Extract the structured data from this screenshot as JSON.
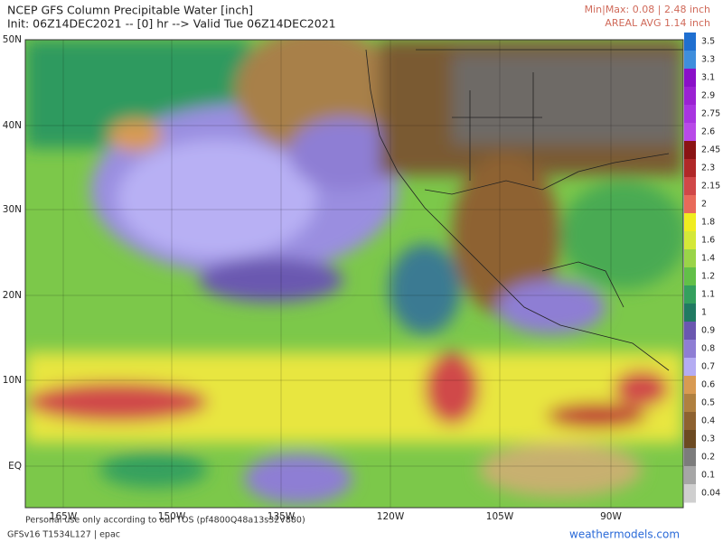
{
  "header": {
    "title": "NCEP GFS Column Precipitable Water [inch]",
    "subtitle": "Init: 06Z14DEC2021 -- [0] hr --> Valid Tue 06Z14DEC2021",
    "minmax": "Min|Max: 0.08 | 2.48 inch",
    "areal_avg": "AREAL AVG 1.14 inch"
  },
  "map": {
    "lat_labels": [
      "50N",
      "40N",
      "30N",
      "20N",
      "10N",
      "EQ"
    ],
    "lon_labels": [
      "165W",
      "150W",
      "135W",
      "120W",
      "105W",
      "90W"
    ]
  },
  "legend": {
    "levels": [
      {
        "label": "3.5",
        "color": "#1f6fd0"
      },
      {
        "label": "3.3",
        "color": "#3f8edc"
      },
      {
        "label": "3.1",
        "color": "#8a10c8"
      },
      {
        "label": "2.9",
        "color": "#9a22d2"
      },
      {
        "label": "2.75",
        "color": "#a835e0"
      },
      {
        "label": "2.6",
        "color": "#b84ae8"
      },
      {
        "label": "2.45",
        "color": "#8a1414"
      },
      {
        "label": "2.3",
        "color": "#b02828"
      },
      {
        "label": "2.15",
        "color": "#d04848"
      },
      {
        "label": "2",
        "color": "#e86a5a"
      },
      {
        "label": "1.8",
        "color": "#f0ec20"
      },
      {
        "label": "1.6",
        "color": "#d4e838"
      },
      {
        "label": "1.4",
        "color": "#9ad448"
      },
      {
        "label": "1.2",
        "color": "#62c048"
      },
      {
        "label": "1.1",
        "color": "#34a05e"
      },
      {
        "label": "1",
        "color": "#207a62"
      },
      {
        "label": "0.9",
        "color": "#6a58b0"
      },
      {
        "label": "0.8",
        "color": "#8e7ed4"
      },
      {
        "label": "0.7",
        "color": "#b4acf2"
      },
      {
        "label": "0.6",
        "color": "#d89a52"
      },
      {
        "label": "0.5",
        "color": "#b08040"
      },
      {
        "label": "0.4",
        "color": "#8e6230"
      },
      {
        "label": "0.3",
        "color": "#6c4a22"
      },
      {
        "label": "0.2",
        "color": "#7c7c7c"
      },
      {
        "label": "0.1",
        "color": "#a6a6a6"
      },
      {
        "label": "0.04",
        "color": "#cfcfcf"
      }
    ]
  },
  "footer": {
    "notice": "Personal use only according to our TOS (pf4800Q48a13s32V880)",
    "model": "GFSv16 T1534L127 | epac",
    "site": "weathermodels.com"
  }
}
